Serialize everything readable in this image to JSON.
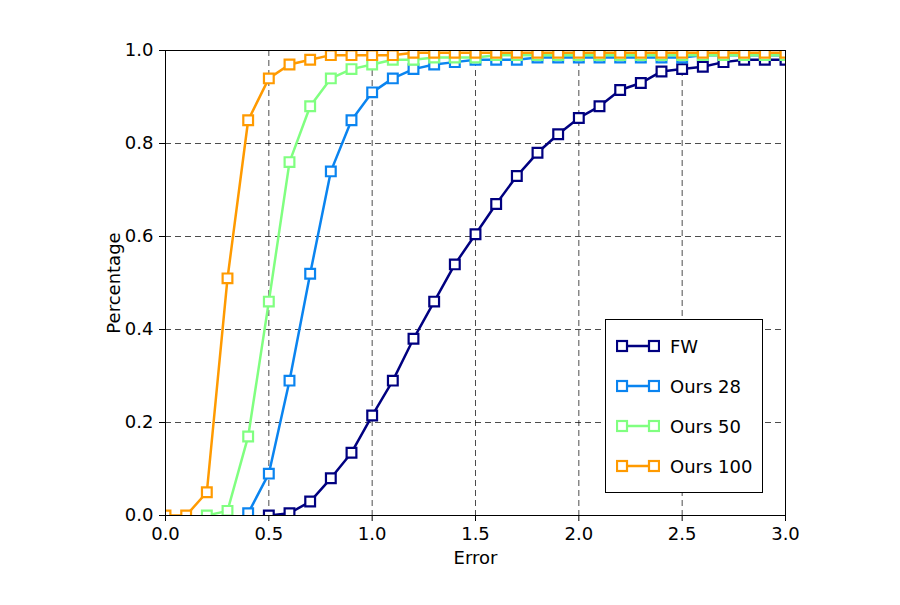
{
  "chart_data": {
    "type": "line",
    "x_label": "Error",
    "y_label": "Percentage",
    "x": [
      0.0,
      0.1,
      0.2,
      0.3,
      0.4,
      0.5,
      0.6,
      0.7,
      0.8,
      0.9,
      1.0,
      1.1,
      1.2,
      1.3,
      1.4,
      1.5,
      1.6,
      1.7,
      1.8,
      1.9,
      2.0,
      2.1,
      2.2,
      2.3,
      2.4,
      2.5,
      2.6,
      2.7,
      2.8,
      2.9,
      3.0
    ],
    "series": [
      {
        "name": "FW",
        "color": "#000080",
        "values": [
          null,
          null,
          null,
          null,
          null,
          0.0,
          0.005,
          0.03,
          0.08,
          0.135,
          0.215,
          0.29,
          0.38,
          0.46,
          0.54,
          0.605,
          0.67,
          0.73,
          0.78,
          0.82,
          0.855,
          0.88,
          0.915,
          0.93,
          0.955,
          0.96,
          0.965,
          0.975,
          0.98,
          0.98,
          0.98
        ]
      },
      {
        "name": "Ours 28",
        "color": "#0a84f0",
        "values": [
          null,
          null,
          null,
          null,
          0.005,
          0.09,
          0.29,
          0.52,
          0.74,
          0.85,
          0.91,
          0.94,
          0.96,
          0.97,
          0.975,
          0.98,
          0.98,
          0.98,
          0.985,
          0.985,
          0.985,
          0.985,
          0.985,
          0.985,
          0.985,
          0.985,
          0.99,
          0.99,
          0.99,
          0.99,
          0.99
        ]
      },
      {
        "name": "Ours 50",
        "color": "#80ff80",
        "values": [
          null,
          null,
          0.0,
          0.01,
          0.17,
          0.46,
          0.76,
          0.88,
          0.94,
          0.96,
          0.97,
          0.98,
          0.98,
          0.985,
          0.985,
          0.985,
          0.99,
          0.99,
          0.99,
          0.99,
          0.99,
          0.99,
          0.99,
          0.99,
          0.99,
          0.99,
          0.99,
          0.99,
          0.99,
          0.99,
          0.99
        ]
      },
      {
        "name": "Ours 100",
        "color": "#ff9a00",
        "values": [
          0.0,
          0.0,
          0.05,
          0.51,
          0.85,
          0.94,
          0.97,
          0.98,
          0.99,
          0.99,
          0.99,
          0.99,
          0.995,
          0.995,
          0.995,
          0.995,
          0.995,
          0.995,
          0.995,
          0.995,
          0.995,
          0.995,
          0.995,
          0.995,
          0.995,
          0.995,
          0.995,
          0.995,
          0.995,
          0.995,
          0.995
        ]
      }
    ],
    "xlim": [
      0.0,
      3.0
    ],
    "xticks": [
      {
        "value": 0.0,
        "label": "0.0"
      },
      {
        "value": 0.5,
        "label": "0.5"
      },
      {
        "value": 1.0,
        "label": "1.0"
      },
      {
        "value": 1.5,
        "label": "1.5"
      },
      {
        "value": 2.0,
        "label": "2.0"
      },
      {
        "value": 2.5,
        "label": "2.5"
      },
      {
        "value": 3.0,
        "label": "3.0"
      }
    ],
    "ylim": [
      0.0,
      1.0
    ],
    "yticks": [
      {
        "value": 0.0,
        "label": "0.0"
      },
      {
        "value": 0.2,
        "label": "0.2"
      },
      {
        "value": 0.4,
        "label": "0.4"
      },
      {
        "value": 0.6,
        "label": "0.6"
      },
      {
        "value": 0.8,
        "label": "0.8"
      },
      {
        "value": 1.0,
        "label": "1.0"
      }
    ],
    "grid": true,
    "legend": "lower right",
    "marker": "square"
  }
}
